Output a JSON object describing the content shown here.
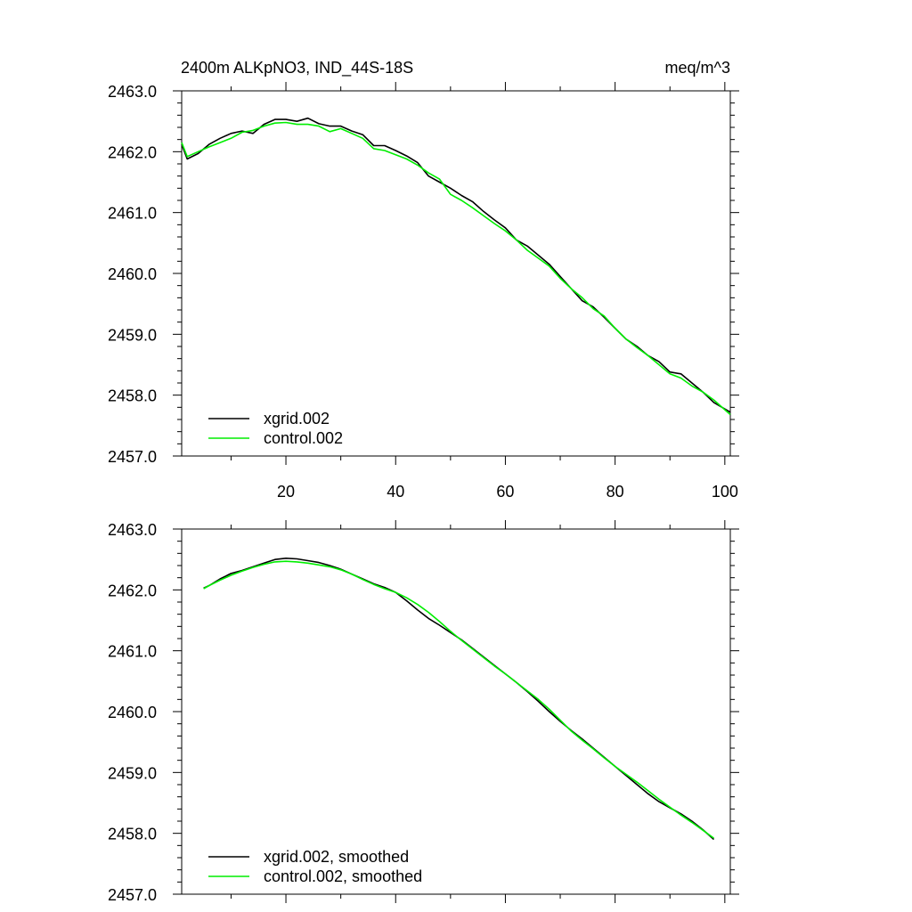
{
  "title": "2400m ALKpNO3, IND_44S-18S",
  "units": "meq/m^3",
  "chart_data": [
    {
      "type": "line",
      "xlim": [
        1,
        101
      ],
      "ylim": [
        2457.0,
        2463.0
      ],
      "y_tick_values": [
        2457.0,
        2458.0,
        2459.0,
        2460.0,
        2461.0,
        2462.0,
        2463.0
      ],
      "y_tick_labels": [
        "2457.0",
        "2458.0",
        "2459.0",
        "2460.0",
        "2461.0",
        "2462.0",
        "2463.0"
      ],
      "x_tick_values": [
        20,
        40,
        60,
        80,
        100
      ],
      "x_tick_labels": [
        "20",
        "40",
        "60",
        "80",
        "100"
      ],
      "legend_position": "bottom-left",
      "series": [
        {
          "name": "xgrid.002",
          "color": "#000000",
          "points": [
            [
              1,
              2462.12
            ],
            [
              2,
              2461.88
            ],
            [
              4,
              2461.97
            ],
            [
              6,
              2462.12
            ],
            [
              8,
              2462.22
            ],
            [
              10,
              2462.3
            ],
            [
              12,
              2462.34
            ],
            [
              14,
              2462.3
            ],
            [
              16,
              2462.45
            ],
            [
              18,
              2462.53
            ],
            [
              20,
              2462.53
            ],
            [
              22,
              2462.5
            ],
            [
              24,
              2462.55
            ],
            [
              26,
              2462.46
            ],
            [
              28,
              2462.42
            ],
            [
              30,
              2462.42
            ],
            [
              32,
              2462.34
            ],
            [
              34,
              2462.28
            ],
            [
              36,
              2462.1
            ],
            [
              38,
              2462.1
            ],
            [
              40,
              2462.02
            ],
            [
              42,
              2461.93
            ],
            [
              44,
              2461.82
            ],
            [
              46,
              2461.6
            ],
            [
              48,
              2461.5
            ],
            [
              50,
              2461.4
            ],
            [
              52,
              2461.28
            ],
            [
              54,
              2461.18
            ],
            [
              56,
              2461.02
            ],
            [
              58,
              2460.88
            ],
            [
              60,
              2460.75
            ],
            [
              62,
              2460.55
            ],
            [
              64,
              2460.45
            ],
            [
              66,
              2460.3
            ],
            [
              68,
              2460.15
            ],
            [
              70,
              2459.95
            ],
            [
              72,
              2459.75
            ],
            [
              74,
              2459.55
            ],
            [
              76,
              2459.45
            ],
            [
              78,
              2459.28
            ],
            [
              80,
              2459.1
            ],
            [
              82,
              2458.92
            ],
            [
              84,
              2458.8
            ],
            [
              86,
              2458.65
            ],
            [
              88,
              2458.55
            ],
            [
              90,
              2458.38
            ],
            [
              92,
              2458.35
            ],
            [
              94,
              2458.2
            ],
            [
              96,
              2458.05
            ],
            [
              98,
              2457.88
            ],
            [
              101,
              2457.72
            ]
          ]
        },
        {
          "name": "control.002",
          "color": "#00ee00",
          "points": [
            [
              1,
              2462.15
            ],
            [
              2,
              2461.92
            ],
            [
              4,
              2462.0
            ],
            [
              6,
              2462.08
            ],
            [
              8,
              2462.15
            ],
            [
              10,
              2462.22
            ],
            [
              12,
              2462.32
            ],
            [
              14,
              2462.35
            ],
            [
              16,
              2462.42
            ],
            [
              18,
              2462.47
            ],
            [
              20,
              2462.48
            ],
            [
              22,
              2462.45
            ],
            [
              24,
              2462.45
            ],
            [
              26,
              2462.42
            ],
            [
              28,
              2462.33
            ],
            [
              30,
              2462.38
            ],
            [
              32,
              2462.3
            ],
            [
              34,
              2462.22
            ],
            [
              36,
              2462.05
            ],
            [
              38,
              2462.02
            ],
            [
              40,
              2461.95
            ],
            [
              42,
              2461.88
            ],
            [
              44,
              2461.78
            ],
            [
              46,
              2461.65
            ],
            [
              48,
              2461.55
            ],
            [
              50,
              2461.3
            ],
            [
              52,
              2461.2
            ],
            [
              54,
              2461.08
            ],
            [
              56,
              2460.95
            ],
            [
              58,
              2460.82
            ],
            [
              60,
              2460.7
            ],
            [
              62,
              2460.55
            ],
            [
              64,
              2460.38
            ],
            [
              66,
              2460.25
            ],
            [
              68,
              2460.12
            ],
            [
              70,
              2459.92
            ],
            [
              72,
              2459.75
            ],
            [
              74,
              2459.6
            ],
            [
              76,
              2459.42
            ],
            [
              78,
              2459.3
            ],
            [
              80,
              2459.1
            ],
            [
              82,
              2458.92
            ],
            [
              84,
              2458.78
            ],
            [
              86,
              2458.65
            ],
            [
              88,
              2458.5
            ],
            [
              90,
              2458.35
            ],
            [
              92,
              2458.28
            ],
            [
              94,
              2458.15
            ],
            [
              96,
              2458.05
            ],
            [
              98,
              2457.92
            ],
            [
              101,
              2457.68
            ]
          ]
        }
      ]
    },
    {
      "type": "line",
      "xlim": [
        1,
        101
      ],
      "ylim": [
        2457.0,
        2463.0
      ],
      "y_tick_values": [
        2457.0,
        2458.0,
        2459.0,
        2460.0,
        2461.0,
        2462.0,
        2463.0
      ],
      "y_tick_labels": [
        "2457.0",
        "2458.0",
        "2459.0",
        "2460.0",
        "2461.0",
        "2462.0",
        "2463.0"
      ],
      "x_tick_values": [
        20,
        40,
        60,
        80,
        100
      ],
      "x_tick_labels": [],
      "legend_position": "bottom-left",
      "series": [
        {
          "name": "xgrid.002, smoothed",
          "color": "#000000",
          "points": [
            [
              5,
              2462.03
            ],
            [
              6,
              2462.07
            ],
            [
              8,
              2462.18
            ],
            [
              10,
              2462.27
            ],
            [
              12,
              2462.32
            ],
            [
              14,
              2462.38
            ],
            [
              16,
              2462.44
            ],
            [
              18,
              2462.5
            ],
            [
              20,
              2462.52
            ],
            [
              22,
              2462.51
            ],
            [
              24,
              2462.48
            ],
            [
              26,
              2462.45
            ],
            [
              28,
              2462.4
            ],
            [
              30,
              2462.34
            ],
            [
              32,
              2462.26
            ],
            [
              34,
              2462.18
            ],
            [
              36,
              2462.1
            ],
            [
              38,
              2462.04
            ],
            [
              40,
              2461.96
            ],
            [
              42,
              2461.82
            ],
            [
              44,
              2461.67
            ],
            [
              46,
              2461.53
            ],
            [
              48,
              2461.42
            ],
            [
              50,
              2461.3
            ],
            [
              52,
              2461.18
            ],
            [
              54,
              2461.04
            ],
            [
              56,
              2460.9
            ],
            [
              58,
              2460.76
            ],
            [
              60,
              2460.62
            ],
            [
              62,
              2460.48
            ],
            [
              64,
              2460.33
            ],
            [
              66,
              2460.17
            ],
            [
              68,
              2460.0
            ],
            [
              70,
              2459.84
            ],
            [
              72,
              2459.69
            ],
            [
              74,
              2459.55
            ],
            [
              76,
              2459.4
            ],
            [
              78,
              2459.25
            ],
            [
              80,
              2459.1
            ],
            [
              82,
              2458.95
            ],
            [
              84,
              2458.8
            ],
            [
              86,
              2458.65
            ],
            [
              88,
              2458.52
            ],
            [
              90,
              2458.42
            ],
            [
              92,
              2458.32
            ],
            [
              94,
              2458.2
            ],
            [
              96,
              2458.06
            ],
            [
              98,
              2457.9
            ]
          ]
        },
        {
          "name": "control.002, smoothed",
          "color": "#00ee00",
          "points": [
            [
              5,
              2462.02
            ],
            [
              6,
              2462.07
            ],
            [
              8,
              2462.16
            ],
            [
              10,
              2462.24
            ],
            [
              12,
              2462.31
            ],
            [
              14,
              2462.37
            ],
            [
              16,
              2462.42
            ],
            [
              18,
              2462.46
            ],
            [
              20,
              2462.47
            ],
            [
              22,
              2462.46
            ],
            [
              24,
              2462.44
            ],
            [
              26,
              2462.41
            ],
            [
              28,
              2462.38
            ],
            [
              30,
              2462.33
            ],
            [
              32,
              2462.26
            ],
            [
              34,
              2462.17
            ],
            [
              36,
              2462.09
            ],
            [
              38,
              2462.02
            ],
            [
              40,
              2461.96
            ],
            [
              42,
              2461.87
            ],
            [
              44,
              2461.76
            ],
            [
              46,
              2461.63
            ],
            [
              48,
              2461.48
            ],
            [
              50,
              2461.32
            ],
            [
              52,
              2461.17
            ],
            [
              54,
              2461.03
            ],
            [
              56,
              2460.89
            ],
            [
              58,
              2460.75
            ],
            [
              60,
              2460.62
            ],
            [
              62,
              2460.48
            ],
            [
              64,
              2460.34
            ],
            [
              66,
              2460.2
            ],
            [
              68,
              2460.04
            ],
            [
              70,
              2459.86
            ],
            [
              72,
              2459.68
            ],
            [
              74,
              2459.53
            ],
            [
              76,
              2459.39
            ],
            [
              78,
              2459.24
            ],
            [
              80,
              2459.1
            ],
            [
              82,
              2458.97
            ],
            [
              84,
              2458.84
            ],
            [
              86,
              2458.7
            ],
            [
              88,
              2458.56
            ],
            [
              90,
              2458.43
            ],
            [
              92,
              2458.3
            ],
            [
              94,
              2458.18
            ],
            [
              96,
              2458.05
            ],
            [
              98,
              2457.92
            ]
          ]
        }
      ]
    }
  ]
}
